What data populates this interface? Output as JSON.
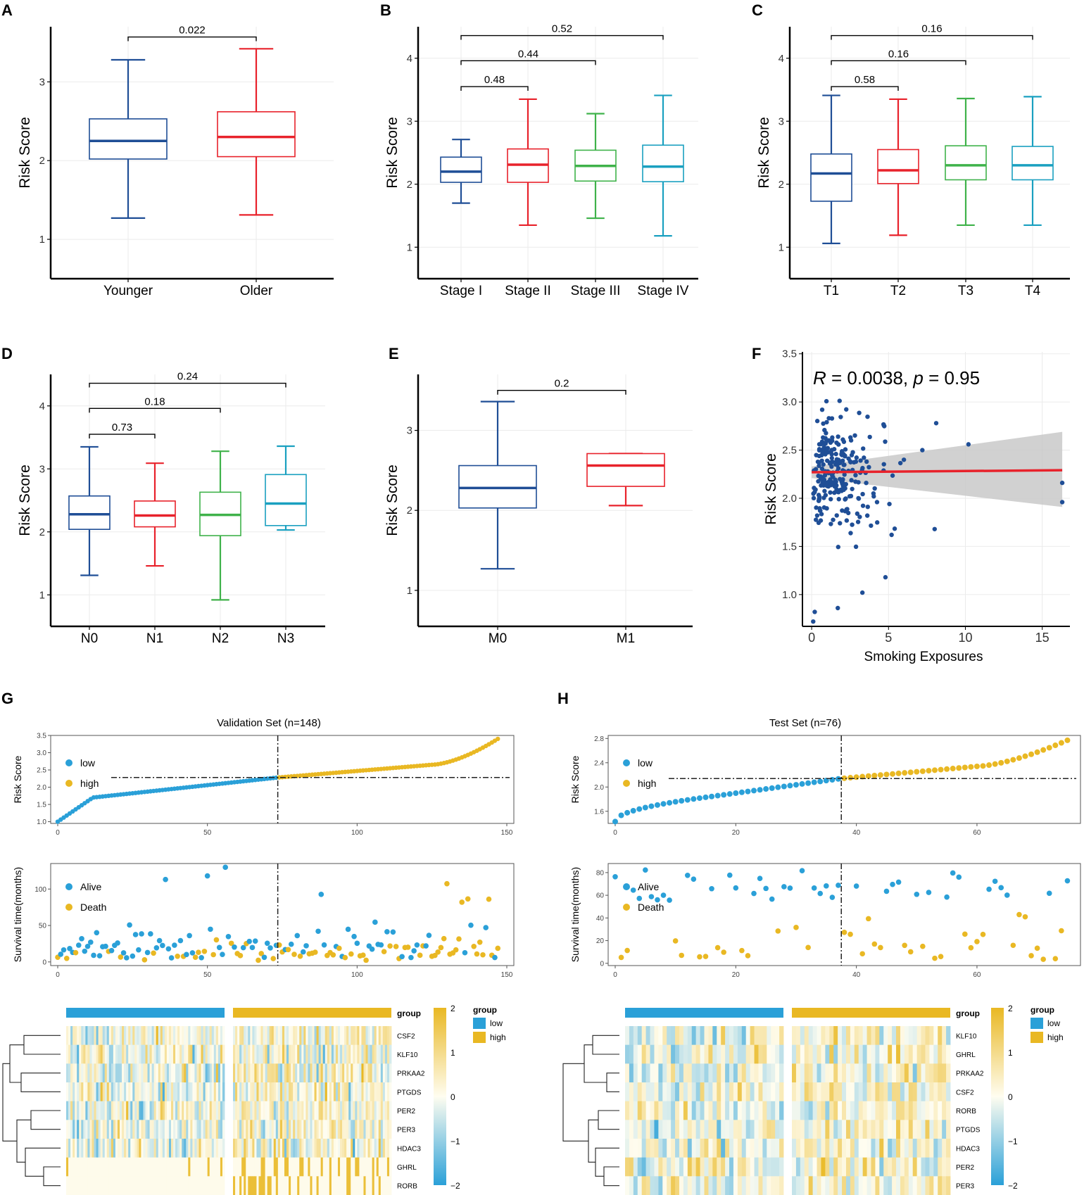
{
  "colors": {
    "navy": "#1f4e96",
    "red": "#e8222b",
    "green": "#3fb24a",
    "teal": "#1aa0c0",
    "low": "#2aa0d8",
    "high": "#e9b823",
    "grid": "#ebebeb",
    "axis": "#000000",
    "band": "#c9c9c9",
    "fit": "#e8222b"
  },
  "chart_data": [
    {
      "panel": "A",
      "type": "box",
      "ylabel": "Risk Score",
      "ylim": [
        0.5,
        3.7
      ],
      "yticks": [
        1,
        2,
        3
      ],
      "categories": [
        "Younger",
        "Older"
      ],
      "boxes": [
        {
          "name": "Younger",
          "min": 1.27,
          "q1": 2.02,
          "median": 2.25,
          "q3": 2.53,
          "max": 3.28,
          "color": "navy"
        },
        {
          "name": "Older",
          "min": 1.31,
          "q1": 2.05,
          "median": 2.3,
          "q3": 2.62,
          "max": 3.42,
          "color": "red"
        }
      ],
      "comparisons": [
        {
          "from": 0,
          "to": 1,
          "label": "0.022",
          "y": 3.57
        }
      ]
    },
    {
      "panel": "B",
      "type": "box",
      "ylabel": "Risk Score",
      "ylim": [
        0.5,
        4.5
      ],
      "yticks": [
        1,
        2,
        3,
        4
      ],
      "categories": [
        "Stage I",
        "Stage II",
        "Stage III",
        "Stage IV"
      ],
      "boxes": [
        {
          "name": "Stage I",
          "min": 1.7,
          "q1": 2.03,
          "median": 2.2,
          "q3": 2.43,
          "max": 2.71,
          "color": "navy"
        },
        {
          "name": "Stage II",
          "min": 1.35,
          "q1": 2.03,
          "median": 2.31,
          "q3": 2.56,
          "max": 3.35,
          "color": "red"
        },
        {
          "name": "Stage III",
          "min": 1.46,
          "q1": 2.05,
          "median": 2.29,
          "q3": 2.54,
          "max": 3.12,
          "color": "green"
        },
        {
          "name": "Stage IV",
          "min": 1.18,
          "q1": 2.04,
          "median": 2.28,
          "q3": 2.62,
          "max": 3.41,
          "color": "teal"
        }
      ],
      "comparisons": [
        {
          "from": 0,
          "to": 1,
          "label": "0.48",
          "y": 3.55
        },
        {
          "from": 0,
          "to": 2,
          "label": "0.44",
          "y": 3.96
        },
        {
          "from": 0,
          "to": 3,
          "label": "0.52",
          "y": 4.36
        }
      ]
    },
    {
      "panel": "C",
      "type": "box",
      "ylabel": "Risk Score",
      "ylim": [
        0.5,
        4.5
      ],
      "yticks": [
        1,
        2,
        3,
        4
      ],
      "categories": [
        "T1",
        "T2",
        "T3",
        "T4"
      ],
      "boxes": [
        {
          "name": "T1",
          "min": 1.06,
          "q1": 1.73,
          "median": 2.17,
          "q3": 2.48,
          "max": 3.41,
          "color": "navy"
        },
        {
          "name": "T2",
          "min": 1.19,
          "q1": 2.01,
          "median": 2.22,
          "q3": 2.55,
          "max": 3.35,
          "color": "red"
        },
        {
          "name": "T3",
          "min": 1.35,
          "q1": 2.07,
          "median": 2.3,
          "q3": 2.61,
          "max": 3.36,
          "color": "green"
        },
        {
          "name": "T4",
          "min": 1.35,
          "q1": 2.07,
          "median": 2.3,
          "q3": 2.6,
          "max": 3.39,
          "color": "teal"
        }
      ],
      "comparisons": [
        {
          "from": 0,
          "to": 1,
          "label": "0.58",
          "y": 3.55
        },
        {
          "from": 0,
          "to": 2,
          "label": "0.16",
          "y": 3.96
        },
        {
          "from": 0,
          "to": 3,
          "label": "0.16",
          "y": 4.36
        }
      ]
    },
    {
      "panel": "D",
      "type": "box",
      "ylabel": "Risk Score",
      "ylim": [
        0.5,
        4.5
      ],
      "yticks": [
        1,
        2,
        3,
        4
      ],
      "categories": [
        "N0",
        "N1",
        "N2",
        "N3"
      ],
      "boxes": [
        {
          "name": "N0",
          "min": 1.31,
          "q1": 2.04,
          "median": 2.28,
          "q3": 2.57,
          "max": 3.35,
          "color": "navy"
        },
        {
          "name": "N1",
          "min": 1.46,
          "q1": 2.08,
          "median": 2.26,
          "q3": 2.49,
          "max": 3.09,
          "color": "red"
        },
        {
          "name": "N2",
          "min": 0.92,
          "q1": 1.94,
          "median": 2.27,
          "q3": 2.63,
          "max": 3.28,
          "color": "green"
        },
        {
          "name": "N3",
          "min": 2.03,
          "q1": 2.1,
          "median": 2.45,
          "q3": 2.91,
          "max": 3.36,
          "color": "teal"
        }
      ],
      "comparisons": [
        {
          "from": 0,
          "to": 1,
          "label": "0.73",
          "y": 3.55
        },
        {
          "from": 0,
          "to": 2,
          "label": "0.18",
          "y": 3.96
        },
        {
          "from": 0,
          "to": 3,
          "label": "0.24",
          "y": 4.36
        }
      ]
    },
    {
      "panel": "E",
      "type": "box",
      "ylabel": "Risk Score",
      "ylim": [
        0.55,
        3.7
      ],
      "yticks": [
        1,
        2,
        3
      ],
      "categories": [
        "M0",
        "M1"
      ],
      "boxes": [
        {
          "name": "M0",
          "min": 1.27,
          "q1": 2.03,
          "median": 2.28,
          "q3": 2.56,
          "max": 3.36,
          "color": "navy"
        },
        {
          "name": "M1",
          "min": 2.06,
          "q1": 2.3,
          "median": 2.56,
          "q3": 2.71,
          "max": 2.71,
          "color": "red"
        }
      ],
      "comparisons": [
        {
          "from": 0,
          "to": 1,
          "label": "0.2",
          "y": 3.5
        }
      ]
    },
    {
      "panel": "F",
      "type": "scatter",
      "title": "",
      "xlabel": "Smoking  Exposures",
      "ylabel": "Risk Score",
      "xlim": [
        -0.6,
        16.8
      ],
      "ylim": [
        0.67,
        3.52
      ],
      "xticks": [
        0,
        5,
        10,
        15
      ],
      "yticks": [
        1.0,
        1.5,
        2.0,
        2.5,
        3.0,
        3.5
      ],
      "annotation": {
        "r_label": "R",
        "r_text": " = 0.0038, ",
        "p_label": "p",
        "p_text": " = 0.95"
      },
      "fit": {
        "intercept": 2.27,
        "slope": 0.0013
      },
      "band": {
        "x0": 0,
        "x1": 16.3,
        "lower0": 2.21,
        "upper0": 2.33,
        "lower1": 1.91,
        "upper1": 2.69
      }
    },
    {
      "panel": "G",
      "type": "risk-panel",
      "title": "Validation Set (n=148)",
      "n": 148,
      "cutoff": 74,
      "risk": {
        "ylabel": "Risk Score",
        "ylim": [
          0.95,
          3.5
        ],
        "yticks": [
          1.0,
          1.5,
          2.0,
          2.5,
          3.0,
          3.5
        ],
        "xticks": [
          0,
          50,
          100,
          150
        ],
        "threshold": 2.28,
        "legend": [
          "low",
          "high"
        ]
      },
      "survival": {
        "ylabel": "Survival time(months)",
        "ylim": [
          -5,
          135
        ],
        "yticks": [
          0,
          50,
          100
        ],
        "xticks": [
          0,
          50,
          100,
          150
        ],
        "legend": [
          "Alive",
          "Death"
        ]
      },
      "heatmap": {
        "genes": [
          "CSF2",
          "KLF10",
          "PRKAA2",
          "PTGDS",
          "PER2",
          "PER3",
          "HDAC3",
          "GHRL",
          "RORB"
        ],
        "group_label": "group",
        "legend_title": "group",
        "groups": [
          "low",
          "high"
        ],
        "scale_ticks": [
          "2",
          "1",
          "0",
          "−1",
          "−2"
        ]
      }
    },
    {
      "panel": "H",
      "type": "risk-panel",
      "title": "Test Set (n=76)",
      "n": 76,
      "cutoff": 38,
      "risk": {
        "ylabel": "Risk Score",
        "ylim": [
          1.4,
          2.85
        ],
        "yticks": [
          1.6,
          2.0,
          2.4,
          2.8
        ],
        "xticks": [
          0,
          20,
          40,
          60
        ],
        "threshold": 2.14,
        "legend": [
          "low",
          "high"
        ]
      },
      "survival": {
        "ylabel": "Survival time(months)",
        "ylim": [
          -2,
          88
        ],
        "yticks": [
          0,
          20,
          40,
          60,
          80
        ],
        "xticks": [
          0,
          20,
          40,
          60
        ],
        "legend": [
          "Alive",
          "Death"
        ]
      },
      "heatmap": {
        "genes": [
          "KLF10",
          "GHRL",
          "PRKAA2",
          "CSF2",
          "RORB",
          "PTGDS",
          "HDAC3",
          "PER2",
          "PER3"
        ],
        "group_label": "group",
        "legend_title": "group",
        "groups": [
          "low",
          "high"
        ],
        "scale_ticks": [
          "2",
          "1",
          "0",
          "−1",
          "−2"
        ]
      }
    }
  ]
}
